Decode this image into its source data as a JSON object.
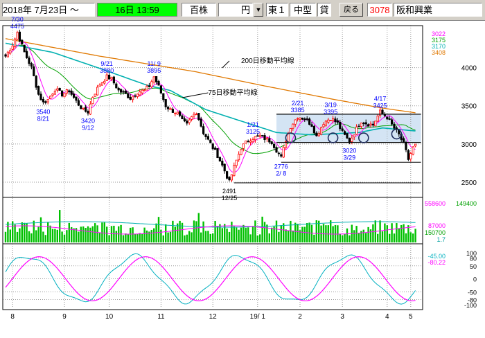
{
  "header": {
    "date_label": "2018年 7月23日 ～",
    "time_label": "16日 13:59",
    "unit_label": "百株",
    "currency_label": "円",
    "market_label": "東１",
    "size_label": "中型",
    "loan_label": "貸",
    "back_label": "戻る",
    "code_label": "3078",
    "company_label": "阪和興業"
  },
  "colors": {
    "up_candle": "#ff0000",
    "down_candle": "#000000",
    "ma_short": "#ff00ff",
    "ma_mid": "#00a000",
    "ma_75": "#00b0b0",
    "ma_200": "#e07800",
    "volume_bar": "#00c000",
    "stoch_k": "#ff00ff",
    "stoch_d": "#00b0c0",
    "time_bar": "#00ff00"
  },
  "chart_data": [
    {
      "type": "candlestick",
      "panel": "price",
      "ylim": [
        2300,
        4550
      ],
      "yticks": [
        2500,
        3000,
        3500,
        4000
      ],
      "x_labels": [
        "8",
        "9",
        "10",
        "11",
        "12",
        "19/ 1",
        "2",
        "3",
        "4",
        "5"
      ],
      "right_values": [
        {
          "text": "3022",
          "color": "#ff00ff"
        },
        {
          "text": "3175",
          "color": "#00a000"
        },
        {
          "text": "3170",
          "color": "#00b0b0"
        },
        {
          "text": "3408",
          "color": "#e07800"
        }
      ],
      "anchors": [
        [
          0,
          4150
        ],
        [
          3,
          4300
        ],
        [
          5,
          4460
        ],
        [
          8,
          4200
        ],
        [
          11,
          4000
        ],
        [
          14,
          3650
        ],
        [
          16,
          3540
        ],
        [
          18,
          3580
        ],
        [
          21,
          3720
        ],
        [
          24,
          3650
        ],
        [
          27,
          3700
        ],
        [
          30,
          3560
        ],
        [
          33,
          3440
        ],
        [
          35,
          3420
        ],
        [
          37,
          3620
        ],
        [
          40,
          3780
        ],
        [
          43,
          3880
        ],
        [
          45,
          3850
        ],
        [
          48,
          3700
        ],
        [
          51,
          3650
        ],
        [
          53,
          3600
        ],
        [
          56,
          3680
        ],
        [
          59,
          3700
        ],
        [
          61,
          3760
        ],
        [
          63,
          3880
        ],
        [
          65,
          3750
        ],
        [
          68,
          3500
        ],
        [
          70,
          3450
        ],
        [
          73,
          3400
        ],
        [
          75,
          3300
        ],
        [
          77,
          3250
        ],
        [
          79,
          3350
        ],
        [
          81,
          3420
        ],
        [
          84,
          3150
        ],
        [
          87,
          3000
        ],
        [
          90,
          2850
        ],
        [
          93,
          2650
        ],
        [
          95,
          2500
        ],
        [
          97,
          2700
        ],
        [
          100,
          2950
        ],
        [
          103,
          3050
        ],
        [
          105,
          3080
        ],
        [
          108,
          3100
        ],
        [
          111,
          3060
        ],
        [
          113,
          3030
        ],
        [
          115,
          2920
        ],
        [
          117,
          2820
        ],
        [
          119,
          3050
        ],
        [
          121,
          3230
        ],
        [
          124,
          3360
        ],
        [
          127,
          3330
        ],
        [
          130,
          3250
        ],
        [
          132,
          3100
        ],
        [
          135,
          3280
        ],
        [
          138,
          3340
        ],
        [
          141,
          3270
        ],
        [
          143,
          3150
        ],
        [
          146,
          3030
        ],
        [
          149,
          3200
        ],
        [
          151,
          3300
        ],
        [
          154,
          3260
        ],
        [
          156,
          3250
        ],
        [
          159,
          3420
        ],
        [
          162,
          3350
        ],
        [
          164,
          3250
        ],
        [
          167,
          3120
        ],
        [
          169,
          3000
        ],
        [
          171,
          2800
        ],
        [
          173,
          2950
        ],
        [
          174,
          2980
        ]
      ],
      "ma_200": [
        [
          0,
          4380
        ],
        [
          40,
          4150
        ],
        [
          80,
          3950
        ],
        [
          110,
          3760
        ],
        [
          140,
          3580
        ],
        [
          160,
          3470
        ],
        [
          174,
          3408
        ]
      ],
      "ma_75": [
        [
          0,
          4320
        ],
        [
          20,
          4200
        ],
        [
          40,
          3990
        ],
        [
          60,
          3770
        ],
        [
          70,
          3700
        ],
        [
          85,
          3450
        ],
        [
          100,
          3300
        ],
        [
          115,
          3150
        ],
        [
          130,
          3120
        ],
        [
          150,
          3150
        ],
        [
          160,
          3210
        ],
        [
          174,
          3170
        ]
      ],
      "horizontal_lines": [
        3390,
        3020,
        2760,
        2490
      ],
      "band": [
        3020,
        3390
      ],
      "circles": [
        [
          121,
          3080
        ],
        [
          139,
          3080
        ],
        [
          152,
          3080
        ],
        [
          166,
          3130
        ]
      ],
      "annotations": [
        {
          "lines": [
            "7/30",
            "4475"
          ],
          "i": 5,
          "v": 4460,
          "pos": "above"
        },
        {
          "lines": [
            "3540",
            "8/21"
          ],
          "i": 16,
          "v": 3540,
          "pos": "below"
        },
        {
          "lines": [
            "9/21",
            "3880"
          ],
          "i": 43,
          "v": 3880,
          "pos": "above"
        },
        {
          "lines": [
            "3420",
            "9/12"
          ],
          "i": 35,
          "v": 3420,
          "pos": "below"
        },
        {
          "lines": [
            "11/ 9",
            "3895"
          ],
          "i": 63,
          "v": 3880,
          "pos": "above"
        },
        {
          "lines": [
            "1/21",
            "3125"
          ],
          "i": 105,
          "v": 3080,
          "pos": "above"
        },
        {
          "lines": [
            "2491",
            "12/25"
          ],
          "i": 95,
          "v": 2500,
          "pos": "below"
        },
        {
          "lines": [
            "2776",
            "2/ 8"
          ],
          "i": 117,
          "v": 2820,
          "pos": "below"
        },
        {
          "lines": [
            "2/21",
            "3385"
          ],
          "i": 124,
          "v": 3360,
          "pos": "above"
        },
        {
          "lines": [
            "3/19",
            "3395"
          ],
          "i": 138,
          "v": 3340,
          "pos": "above"
        },
        {
          "lines": [
            "3020",
            "3/29"
          ],
          "i": 146,
          "v": 3030,
          "pos": "below"
        },
        {
          "lines": [
            "4/17",
            "3425"
          ],
          "i": 159,
          "v": 3420,
          "pos": "above"
        }
      ],
      "line_labels": [
        {
          "text": "200日移動平均線",
          "target": "ma_200"
        },
        {
          "text": "75日移動平均線",
          "target": "ma_75"
        }
      ]
    },
    {
      "type": "bar",
      "panel": "volume",
      "right_values": [
        {
          "text": "558600",
          "color": "#ff00ff"
        },
        {
          "text": "149400",
          "color": "#00a000"
        },
        {
          "text": "87000",
          "color": "#ff00ff"
        },
        {
          "text": "150700",
          "color": "#00a000"
        },
        {
          "text": "1.7",
          "color": "#00a0a0"
        }
      ]
    },
    {
      "type": "line",
      "panel": "stochastics",
      "ylim": [
        -100,
        100
      ],
      "yticks_right": [
        "100",
        "80",
        "50",
        "0",
        "-50",
        "-80",
        "-100"
      ],
      "right_values": [
        {
          "text": "-45.00",
          "color": "#00b0c0"
        },
        {
          "text": "-80.22",
          "color": "#ff00ff"
        }
      ]
    }
  ]
}
